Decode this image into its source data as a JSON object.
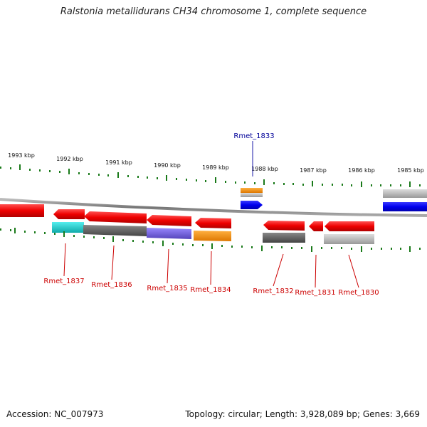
{
  "title": "Ralstonia metallidurans CH34 chromosome 1, complete sequence",
  "scale_labels": [
    "1993 kbp",
    "1992 kbp",
    "1991 kbp",
    "1990 kbp",
    "1989 kbp",
    "1988 kbp",
    "1987 kbp",
    "1986 kbp",
    "1985 kbp"
  ],
  "genes": [
    {
      "name": "Rmet_1837",
      "color": "#cc0000"
    },
    {
      "name": "Rmet_1836",
      "color": "#cc0000"
    },
    {
      "name": "Rmet_1835",
      "color": "#cc0000"
    },
    {
      "name": "Rmet_1834",
      "color": "#cc0000"
    },
    {
      "name": "Rmet_1833",
      "color": "#000099"
    },
    {
      "name": "Rmet_1832",
      "color": "#cc0000"
    },
    {
      "name": "Rmet_1831",
      "color": "#cc0000"
    },
    {
      "name": "Rmet_1830",
      "color": "#cc0000"
    }
  ],
  "footer": {
    "accession": "Accession: NC_007973",
    "summary": "Topology: circular; Length: 3,928,089 bp; Genes: 3,669"
  },
  "colors": {
    "forward_gene": "#0000ee",
    "reverse_gene": "#ee0000",
    "ticks": "#1a7a1a",
    "backbone": "#888888",
    "cog_cyan": "#22cccc",
    "cog_darkgray": "#666666",
    "cog_purple": "#7766dd",
    "cog_orange": "#ff9900",
    "cog_lightgray": "#bbbbbb"
  }
}
